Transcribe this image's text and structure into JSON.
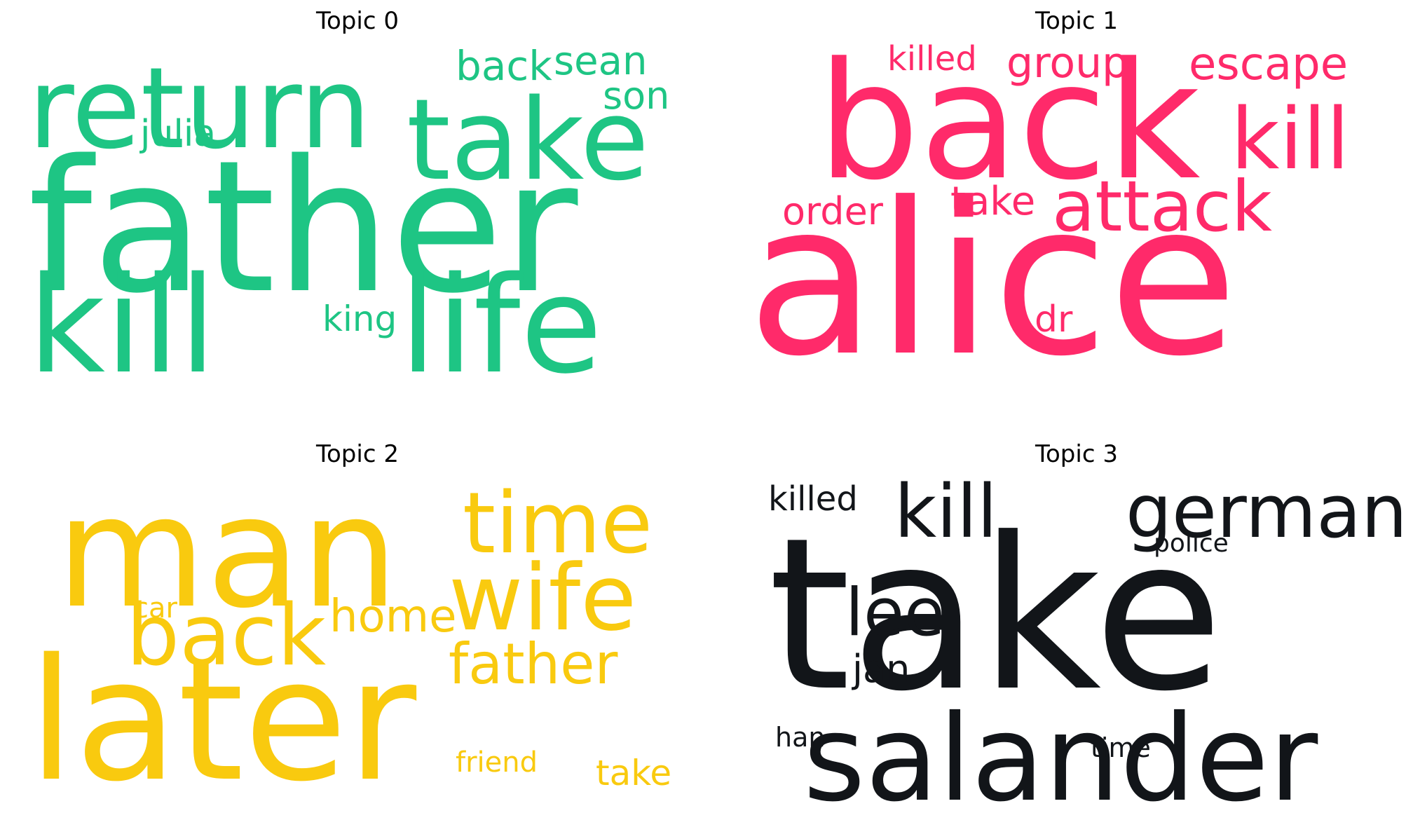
{
  "chart_data": [
    {
      "type": "wordcloud",
      "title": "Topic 0",
      "color": "#1ec584",
      "words": [
        {
          "text": "father"
        },
        {
          "text": "kill"
        },
        {
          "text": "life"
        },
        {
          "text": "return"
        },
        {
          "text": "take"
        },
        {
          "text": "back"
        },
        {
          "text": "sean"
        },
        {
          "text": "son"
        },
        {
          "text": "julia"
        },
        {
          "text": "king"
        }
      ]
    },
    {
      "type": "wordcloud",
      "title": "Topic 1",
      "color": "#ff2a6a",
      "words": [
        {
          "text": "alice"
        },
        {
          "text": "back"
        },
        {
          "text": "kill"
        },
        {
          "text": "attack"
        },
        {
          "text": "escape"
        },
        {
          "text": "group"
        },
        {
          "text": "killed"
        },
        {
          "text": "order"
        },
        {
          "text": "take"
        },
        {
          "text": "dr"
        }
      ]
    },
    {
      "type": "wordcloud",
      "title": "Topic 2",
      "color": "#f9ca0f",
      "words": [
        {
          "text": "man"
        },
        {
          "text": "later"
        },
        {
          "text": "time"
        },
        {
          "text": "wife"
        },
        {
          "text": "back"
        },
        {
          "text": "father"
        },
        {
          "text": "home"
        },
        {
          "text": "car"
        },
        {
          "text": "friend"
        },
        {
          "text": "take"
        }
      ]
    },
    {
      "type": "wordcloud",
      "title": "Topic 3",
      "color": "#121519",
      "words": [
        {
          "text": "take"
        },
        {
          "text": "salander"
        },
        {
          "text": "kill"
        },
        {
          "text": "german"
        },
        {
          "text": "killed"
        },
        {
          "text": "lee"
        },
        {
          "text": "police"
        },
        {
          "text": "jan"
        },
        {
          "text": "han"
        },
        {
          "text": "time"
        }
      ]
    }
  ]
}
